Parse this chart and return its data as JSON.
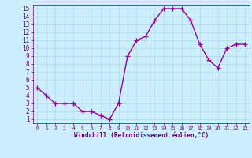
{
  "x": [
    0,
    1,
    2,
    3,
    4,
    5,
    6,
    7,
    8,
    9,
    10,
    11,
    12,
    13,
    14,
    15,
    16,
    17,
    18,
    19,
    20,
    21,
    22,
    23
  ],
  "y": [
    5,
    4,
    3,
    3,
    3,
    2,
    2,
    1.5,
    1,
    3,
    9,
    11,
    11.5,
    13.5,
    15,
    15,
    15,
    13.5,
    10.5,
    8.5,
    7.5,
    10,
    10.5,
    10.5
  ],
  "line_color": "#990099",
  "marker_color": "#990099",
  "bg_color": "#cceeff",
  "grid_color": "#aadddd",
  "xlabel": "Windchill (Refroidissement éolien,°C)",
  "xlabel_color": "#660066",
  "tick_color": "#660066",
  "xlim": [
    -0.5,
    23.5
  ],
  "ylim": [
    0.5,
    15.5
  ],
  "yticks": [
    1,
    2,
    3,
    4,
    5,
    6,
    7,
    8,
    9,
    10,
    11,
    12,
    13,
    14,
    15
  ],
  "xticks": [
    0,
    1,
    2,
    3,
    4,
    5,
    6,
    7,
    8,
    9,
    10,
    11,
    12,
    13,
    14,
    15,
    16,
    17,
    18,
    19,
    20,
    21,
    22,
    23
  ],
  "linewidth": 1.0,
  "markersize": 4
}
